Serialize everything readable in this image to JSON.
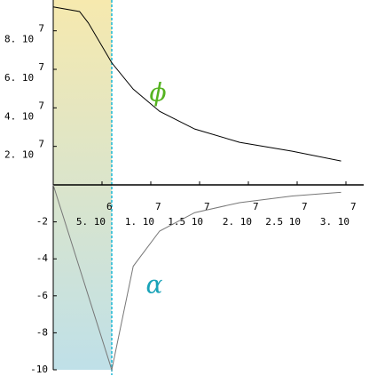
{
  "chart_data": {
    "type": "line",
    "x": [
      0,
      2700000,
      3600000,
      6000000,
      8200000,
      10900000,
      14500000,
      19100000,
      24500000,
      29500000
    ],
    "xlim": [
      0,
      31000000
    ],
    "xticks": [
      {
        "value": 5000000,
        "label": "5. 10",
        "exponent": "6"
      },
      {
        "value": 10000000,
        "label": "1. 10",
        "exponent": "7"
      },
      {
        "value": 15000000,
        "label": "1.5 10",
        "exponent": "7"
      },
      {
        "value": 20000000,
        "label": "2. 10",
        "exponent": "7"
      },
      {
        "value": 25000000,
        "label": "2.5 10",
        "exponent": "7"
      },
      {
        "value": 30000000,
        "label": "3. 10",
        "exponent": "7"
      }
    ],
    "ylim": [
      -10,
      0
    ],
    "yticks": [
      -10,
      -8,
      -6,
      -4,
      -2
    ],
    "y2lim": [
      0,
      96000000
    ],
    "y2ticks": [
      {
        "value": 20000000,
        "label": "2. 10",
        "exponent": "7"
      },
      {
        "value": 40000000,
        "label": "4. 10",
        "exponent": "7"
      },
      {
        "value": 60000000,
        "label": "6. 10",
        "exponent": "7"
      },
      {
        "value": 80000000,
        "label": "8. 10",
        "exponent": "7"
      }
    ],
    "marker_x": 6000000,
    "series": [
      {
        "name": "ϕ",
        "color": "#000000",
        "label_color": "#55b320",
        "axis": "y2",
        "values": [
          92400000,
          90000000,
          84100000,
          63400000,
          49700000,
          38200000,
          29000000,
          22100000,
          17500000,
          12400000
        ]
      },
      {
        "name": "α",
        "color": "#777777",
        "label_color": "#1aa3b8",
        "values": [
          0,
          -4.5,
          -6,
          -10,
          -4.4,
          -2.5,
          -1.5,
          -0.96,
          -0.6,
          -0.4
        ]
      }
    ]
  }
}
